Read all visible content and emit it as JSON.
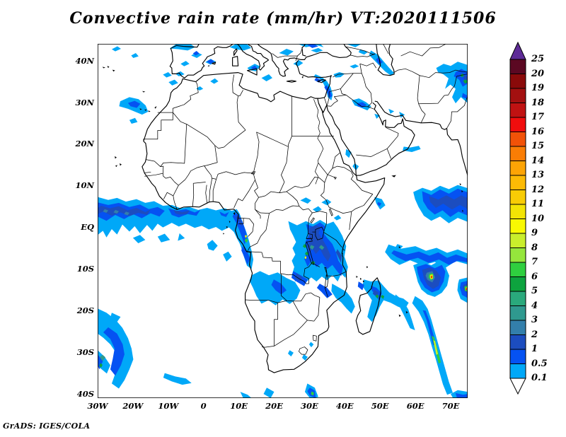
{
  "title": "Convective rain rate (mm/hr) VT:2020111506",
  "attribution": "GrADS: IGES/COLA",
  "axes": {
    "lat_ticks": [
      {
        "label": "40N",
        "deg": 40
      },
      {
        "label": "30N",
        "deg": 30
      },
      {
        "label": "20N",
        "deg": 20
      },
      {
        "label": "10N",
        "deg": 10
      },
      {
        "label": "EQ",
        "deg": 0
      },
      {
        "label": "10S",
        "deg": -10
      },
      {
        "label": "20S",
        "deg": -20
      },
      {
        "label": "30S",
        "deg": -30
      },
      {
        "label": "40S",
        "deg": -40
      }
    ],
    "lon_ticks": [
      {
        "label": "30W",
        "deg": -30
      },
      {
        "label": "20W",
        "deg": -20
      },
      {
        "label": "10W",
        "deg": -10
      },
      {
        "label": "0",
        "deg": 0
      },
      {
        "label": "10E",
        "deg": 10
      },
      {
        "label": "20E",
        "deg": 20
      },
      {
        "label": "30E",
        "deg": 30
      },
      {
        "label": "40E",
        "deg": 40
      },
      {
        "label": "50E",
        "deg": 50
      },
      {
        "label": "60E",
        "deg": 60
      },
      {
        "label": "70E",
        "deg": 70
      }
    ]
  },
  "colorbar": {
    "boundary_labels": [
      "25",
      "20",
      "19",
      "18",
      "17",
      "16",
      "15",
      "14",
      "13",
      "12",
      "11",
      "10",
      "9",
      "8",
      "7",
      "6",
      "5",
      "4",
      "3",
      "2",
      "1",
      "0.5",
      "0.1"
    ],
    "cell_colors": [
      "#5b0822",
      "#8a0a0a",
      "#a31010",
      "#c01212",
      "#f10d0d",
      "#f25208",
      "#fa7d05",
      "#fda405",
      "#fcba05",
      "#f8cc05",
      "#f3e405",
      "#f9f902",
      "#c9ee2c",
      "#95e63c",
      "#2fcf3f",
      "#0da33e",
      "#2aa97c",
      "#2f998f",
      "#337fab",
      "#1c4dbf",
      "#0552f2",
      "#00a8f8"
    ],
    "arrow_top_color": "#5e2b97",
    "arrow_bottom_color": "#ffffff",
    "line_color": "#000000"
  },
  "chart_data": {
    "type": "heatmap",
    "title": "Convective rain rate (mm/hr) VT:2020111506",
    "variable": "Convective rain rate",
    "units": "mm/hr",
    "valid_time": "2020111506",
    "lon_range": [
      -30,
      75
    ],
    "lat_range": [
      -41,
      44.2
    ],
    "grid": "off",
    "legend_position": "right",
    "levels": [
      0.1,
      0.5,
      1,
      2,
      3,
      4,
      5,
      6,
      7,
      8,
      9,
      10,
      11,
      12,
      13,
      14,
      15,
      16,
      17,
      18,
      19,
      20,
      25
    ],
    "palette": [
      "#00a8f8",
      "#0552f2",
      "#1c4dbf",
      "#337fab",
      "#2f998f",
      "#2aa97c",
      "#0da33e",
      "#2fcf3f",
      "#95e63c",
      "#c9ee2c",
      "#f9f902",
      "#f3e405",
      "#f8cc05",
      "#fcba05",
      "#fda405",
      "#fa7d05",
      "#f25208",
      "#f10d0d",
      "#c01212",
      "#a31010",
      "#8a0a0a",
      "#5b0822",
      "#5e2b97"
    ],
    "features": [
      "ITCZ rain band across the equatorial Atlantic from 30W to the Gulf of Guinea (0-7N), cores 0.5-2 mm/hr with embedded 2-4 mm/hr speckles",
      "Large convective cluster over the Congo Basin, Lake Victoria region and Tanzania (24-41E, 2N-17S) with cores 1-10 mm/hr",
      "Rain along the Gabon/Angola coast (9-14E, 1N-10S) with small 5-10 mm/hr spots",
      "Band across northern Madagascar extending east (45-58E, 12-20S)",
      "Tropical cyclone near 64E 11S with spiral bands and eyewall rates above 9-16 mm/hr; second intense vortex near 74E 14S",
      "Curved rain band over the southwest Atlantic (30-20W, 20-38S)",
      "Scattered light rain over Iberia, western and central Mediterranean, Aegean and Black Sea",
      "Rain band along the Levant coast; streaks over the Caspian and Caucasus",
      "Convective cluster over the Indian Ocean (60-75E, 1-10N) and over NE corner (70-75E, 30-39N)",
      "Long narrow band trailing southeast from the cyclone toward 70E 40S with 5-10 mm/hr core"
    ]
  }
}
